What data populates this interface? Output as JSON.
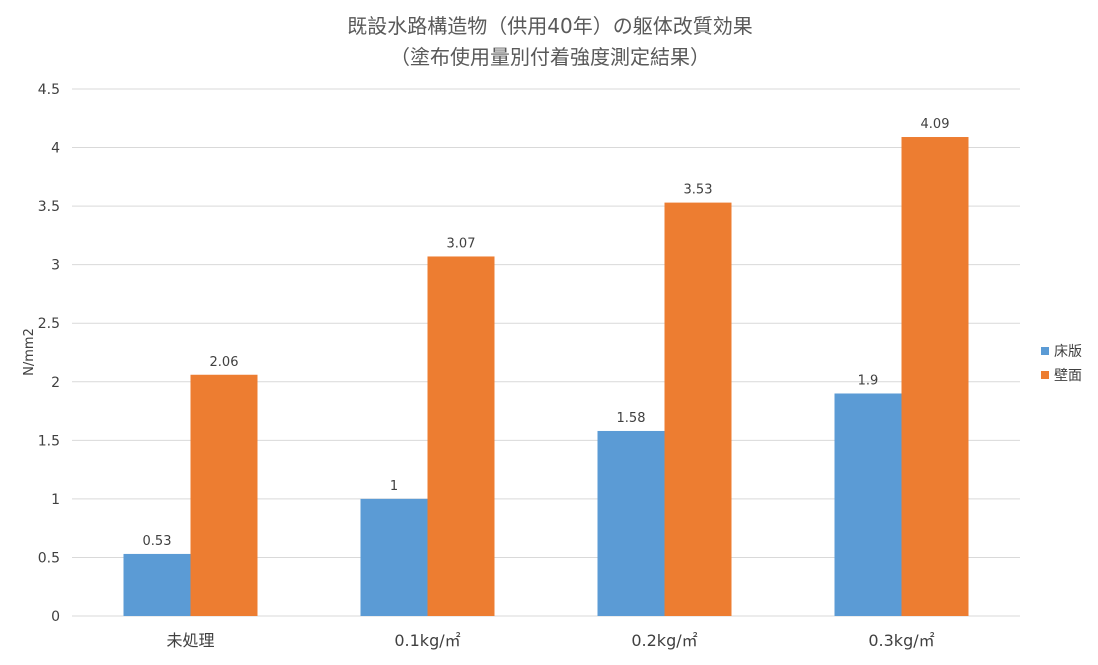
{
  "chart_data": {
    "type": "bar",
    "title": "既設水路構造物（供用40年）の躯体改質効果",
    "subtitle": "（塗布使用量別付着強度測定結果）",
    "xlabel": "",
    "ylabel": "N/mm2",
    "categories": [
      "未処理",
      "0.1kg/㎡",
      "0.2kg/㎡",
      "0.3kg/㎡"
    ],
    "series": [
      {
        "name": "床版",
        "color": "#5b9bd5",
        "values": [
          0.53,
          1,
          1.58,
          1.9
        ],
        "labels": [
          "0.53",
          "1",
          "1.58",
          "1.9"
        ]
      },
      {
        "name": "壁面",
        "color": "#ed7d31",
        "values": [
          2.06,
          3.07,
          3.53,
          4.09
        ],
        "labels": [
          "2.06",
          "3.07",
          "3.53",
          "4.09"
        ]
      }
    ],
    "ylim": [
      0,
      4.5
    ],
    "yticks": [
      "0",
      "0.5",
      "1",
      "1.5",
      "2",
      "2.5",
      "3",
      "3.5",
      "4",
      "4.5"
    ],
    "grid": true,
    "legend_position": "right"
  }
}
